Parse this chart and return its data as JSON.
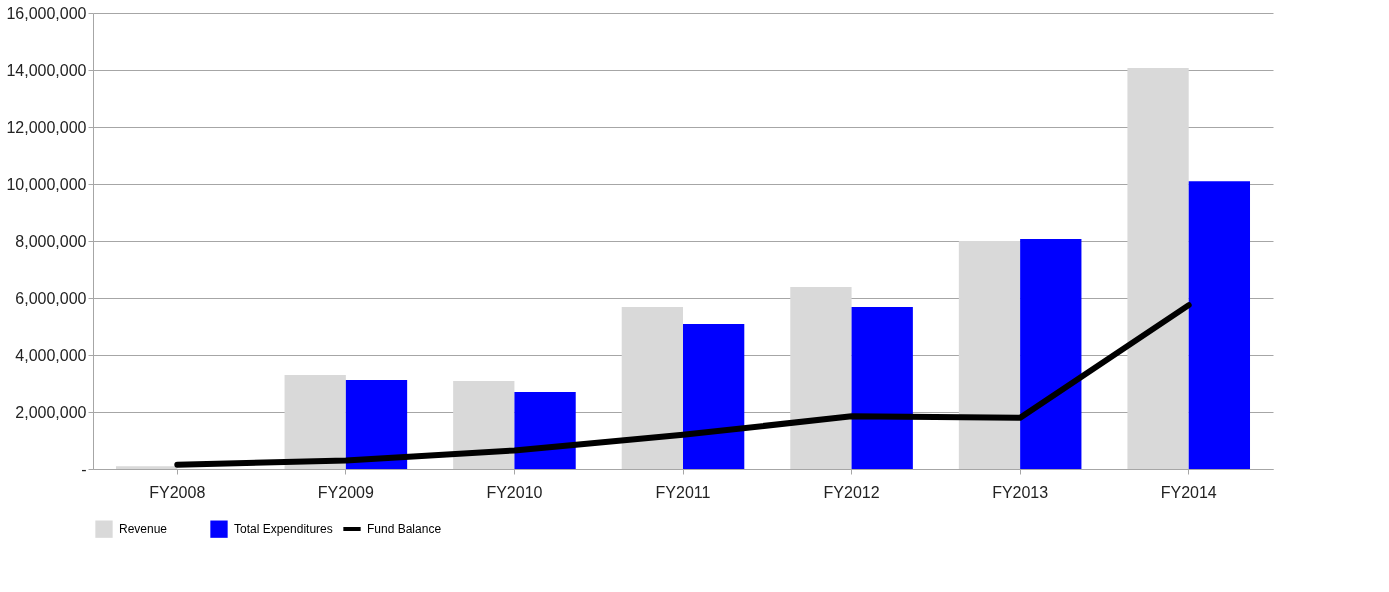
{
  "chart_data": {
    "type": "bar",
    "categories": [
      "FY2008",
      "FY2009",
      "FY2010",
      "FY2011",
      "FY2012",
      "FY2013",
      "FY2014"
    ],
    "series": [
      {
        "name": "Revenue",
        "color": "#d9d9d9",
        "values": [
          100000,
          3300000,
          3090000,
          5680000,
          6390000,
          8000000,
          14070000
        ]
      },
      {
        "name": "Total Expenditures",
        "color": "#0000ff",
        "values": [
          0,
          3120000,
          2700000,
          5090000,
          5680000,
          8070000,
          10100000
        ]
      },
      {
        "name": "Fund Balance",
        "type": "line",
        "color": "#000000",
        "values": [
          150000,
          300000,
          650000,
          1200000,
          1850000,
          1800000,
          5750000
        ]
      }
    ],
    "ylim": [
      0,
      16000000
    ],
    "yticks": [
      {
        "value": 0,
        "label": "-"
      },
      {
        "value": 2000000,
        "label": "2,000,000"
      },
      {
        "value": 4000000,
        "label": "4,000,000"
      },
      {
        "value": 6000000,
        "label": "6,000,000"
      },
      {
        "value": 8000000,
        "label": "8,000,000"
      },
      {
        "value": 10000000,
        "label": "10,000,000"
      },
      {
        "value": 12000000,
        "label": "12,000,000"
      },
      {
        "value": 14000000,
        "label": "14,000,000"
      },
      {
        "value": 16000000,
        "label": "16,000,000"
      }
    ],
    "grid": "y",
    "legend": "bottom",
    "marker": "none",
    "line_style": "solid"
  }
}
